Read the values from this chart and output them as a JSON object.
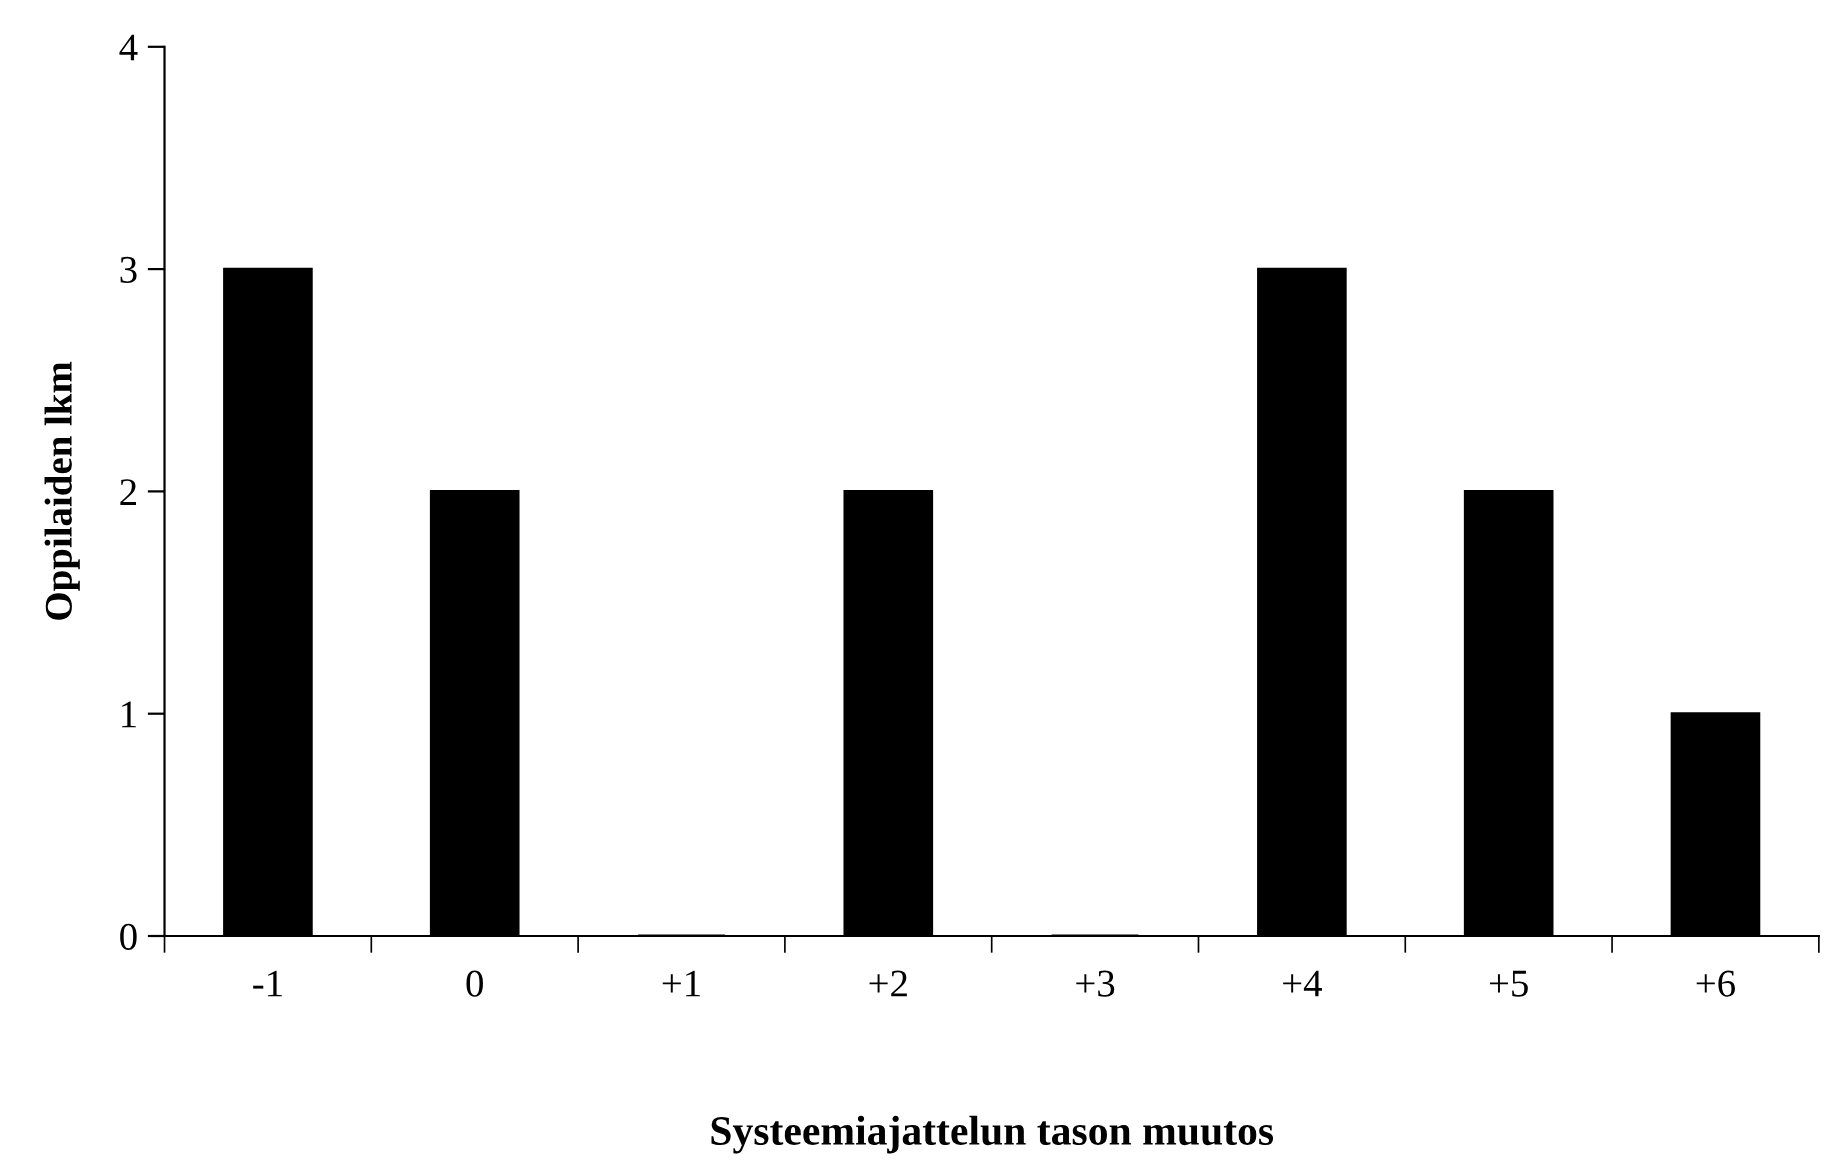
{
  "chart_data": {
    "type": "bar",
    "xlabel": "Systeemiajattelun tason muutos",
    "ylabel": "Oppilaiden lkm",
    "categories": [
      "-1",
      "0",
      "+1",
      "+2",
      "+3",
      "+4",
      "+5",
      "+6"
    ],
    "values": [
      3,
      2,
      0,
      2,
      0,
      3,
      2,
      1
    ],
    "color": "#000000",
    "ylim": [
      0,
      4
    ],
    "yticks": [
      0,
      1,
      2,
      3,
      4
    ],
    "grid": false,
    "legend": false
  }
}
